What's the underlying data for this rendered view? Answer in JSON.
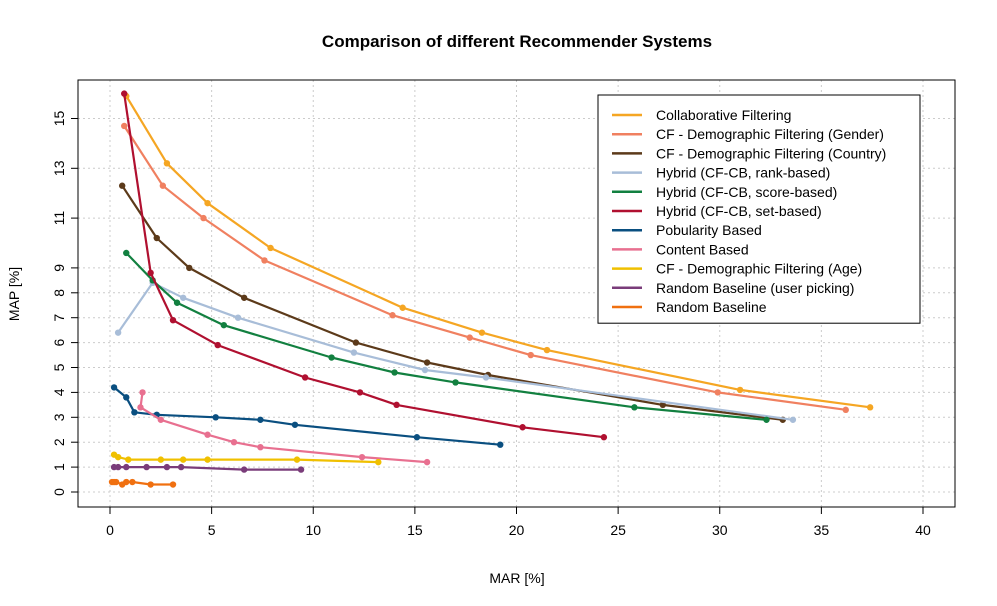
{
  "chart_data": {
    "type": "line",
    "title": "Comparison of different Recommender Systems",
    "xlabel": "MAR [%]",
    "ylabel": "MAP [%]",
    "xlim": [
      0,
      40
    ],
    "ylim": [
      0,
      15
    ],
    "x_ticks": [
      "0",
      "5",
      "10",
      "15",
      "20",
      "25",
      "30",
      "35",
      "40"
    ],
    "y_ticks": [
      "0",
      "1",
      "2",
      "3",
      "4",
      "5",
      "6",
      "7",
      "8",
      "9",
      "11",
      "13",
      "15"
    ],
    "grid": true,
    "legend_position": "top-right",
    "series": [
      {
        "name": "Collaborative Filtering",
        "color": "#F5A623",
        "points": [
          [
            0.8,
            15.9
          ],
          [
            2.8,
            13.2
          ],
          [
            4.8,
            11.6
          ],
          [
            7.9,
            9.8
          ],
          [
            14.4,
            7.4
          ],
          [
            18.3,
            6.4
          ],
          [
            21.5,
            5.7
          ],
          [
            31,
            4.1
          ],
          [
            37.4,
            3.4
          ]
        ]
      },
      {
        "name": "CF - Demographic Filtering (Gender)",
        "color": "#F08060",
        "points": [
          [
            0.7,
            14.7
          ],
          [
            2.6,
            12.3
          ],
          [
            4.6,
            11.0
          ],
          [
            7.6,
            9.3
          ],
          [
            13.9,
            7.1
          ],
          [
            17.7,
            6.2
          ],
          [
            20.7,
            5.5
          ],
          [
            29.9,
            4.0
          ],
          [
            36.2,
            3.3
          ]
        ]
      },
      {
        "name": "CF - Demographic Filtering (Country)",
        "color": "#5C3A1A",
        "points": [
          [
            0.6,
            12.3
          ],
          [
            2.3,
            10.2
          ],
          [
            3.9,
            9.0
          ],
          [
            6.6,
            7.8
          ],
          [
            12.1,
            6.0
          ],
          [
            15.6,
            5.2
          ],
          [
            18.6,
            4.7
          ],
          [
            27.2,
            3.5
          ],
          [
            33.1,
            2.9
          ]
        ]
      },
      {
        "name": "Hybrid (CF-CB, rank-based)",
        "color": "#A8BDD8",
        "points": [
          [
            0.4,
            6.4
          ],
          [
            2.1,
            8.4
          ],
          [
            3.6,
            7.8
          ],
          [
            6.3,
            7.0
          ],
          [
            12,
            5.6
          ],
          [
            15.5,
            4.9
          ],
          [
            18.5,
            4.6
          ],
          [
            33.6,
            2.9
          ]
        ]
      },
      {
        "name": "Hybrid (CF-CB, score-based)",
        "color": "#128040",
        "points": [
          [
            0.8,
            9.6
          ],
          [
            2.1,
            8.5
          ],
          [
            3.3,
            7.6
          ],
          [
            5.6,
            6.7
          ],
          [
            10.9,
            5.4
          ],
          [
            14,
            4.8
          ],
          [
            17,
            4.4
          ],
          [
            25.8,
            3.4
          ],
          [
            32.3,
            2.9
          ]
        ]
      },
      {
        "name": "Hybrid (CF-CB, set-based)",
        "color": "#B01030",
        "points": [
          [
            0.7,
            16
          ],
          [
            2,
            8.8
          ],
          [
            3.1,
            6.9
          ],
          [
            5.3,
            5.9
          ],
          [
            9.6,
            4.6
          ],
          [
            12.3,
            4.0
          ],
          [
            14.1,
            3.5
          ],
          [
            20.3,
            2.6
          ],
          [
            24.3,
            2.2
          ]
        ]
      },
      {
        "name": "Pobularity Based",
        "color": "#0A4F80",
        "points": [
          [
            0.2,
            4.2
          ],
          [
            0.8,
            3.8
          ],
          [
            1.2,
            3.2
          ],
          [
            2.3,
            3.1
          ],
          [
            5.2,
            3.0
          ],
          [
            7.4,
            2.9
          ],
          [
            9.1,
            2.7
          ],
          [
            15.1,
            2.2
          ],
          [
            19.2,
            1.9
          ]
        ]
      },
      {
        "name": "Content Based",
        "color": "#E87090",
        "points": [
          [
            1.6,
            4.0
          ],
          [
            1.5,
            3.4
          ],
          [
            2.5,
            2.9
          ],
          [
            4.8,
            2.3
          ],
          [
            6.1,
            2.0
          ],
          [
            7.4,
            1.8
          ],
          [
            12.4,
            1.4
          ],
          [
            15.6,
            1.2
          ]
        ]
      },
      {
        "name": "CF - Demographic Filtering (Age)",
        "color": "#F0C000",
        "points": [
          [
            0.2,
            1.5
          ],
          [
            0.4,
            1.4
          ],
          [
            0.9,
            1.3
          ],
          [
            2.5,
            1.3
          ],
          [
            3.6,
            1.3
          ],
          [
            4.8,
            1.3
          ],
          [
            9.2,
            1.3
          ],
          [
            13.2,
            1.2
          ]
        ]
      },
      {
        "name": "Random Baseline (user picking)",
        "color": "#7A3C7A",
        "points": [
          [
            0.2,
            1.0
          ],
          [
            0.4,
            1.0
          ],
          [
            0.8,
            1.0
          ],
          [
            1.8,
            1.0
          ],
          [
            2.8,
            1.0
          ],
          [
            3.5,
            1.0
          ],
          [
            6.6,
            0.9
          ],
          [
            9.4,
            0.9
          ]
        ]
      },
      {
        "name": "Random Baseline",
        "color": "#F07010",
        "points": [
          [
            0.1,
            0.4
          ],
          [
            0.2,
            0.4
          ],
          [
            0.3,
            0.4
          ],
          [
            0.6,
            0.3
          ],
          [
            0.8,
            0.4
          ],
          [
            1.1,
            0.4
          ],
          [
            2,
            0.3
          ],
          [
            3.1,
            0.3
          ]
        ]
      }
    ]
  }
}
